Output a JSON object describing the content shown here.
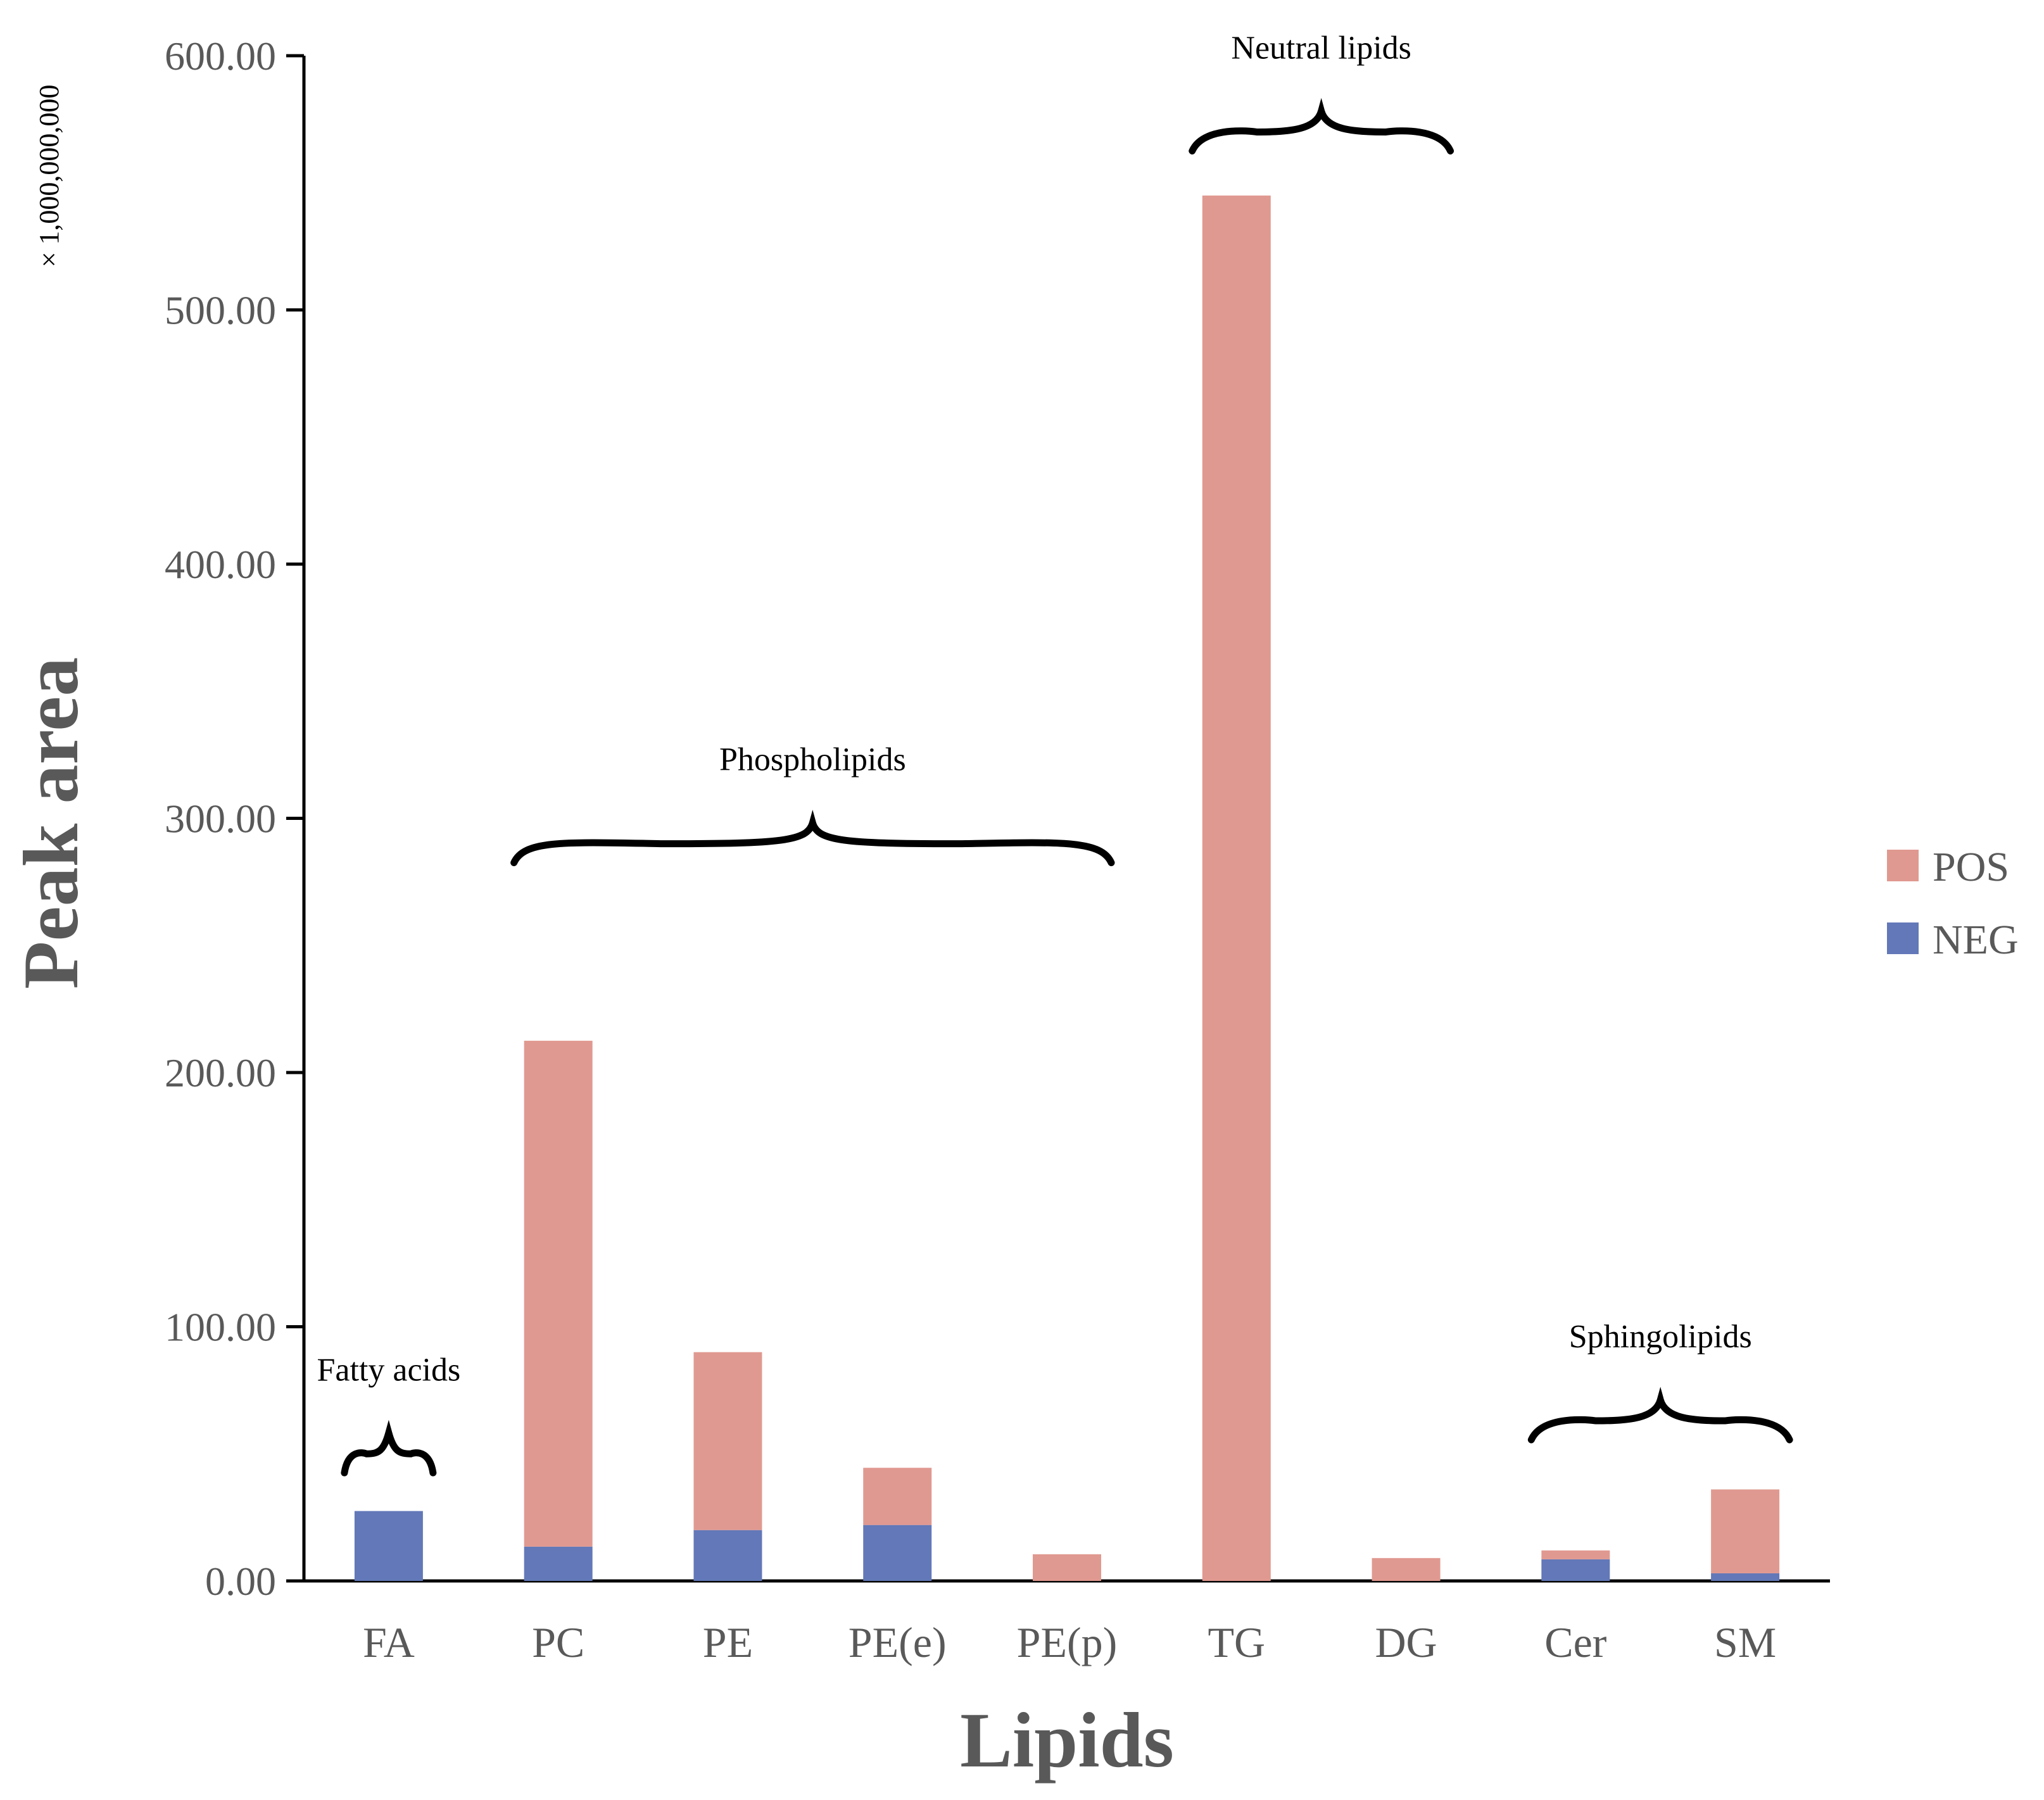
{
  "chart_data": {
    "type": "bar",
    "stacked": true,
    "categories": [
      "FA",
      "PC",
      "PE",
      "PE(e)",
      "PE(p)",
      "TG",
      "DG",
      "Cer",
      "SM"
    ],
    "series": [
      {
        "name": "NEG",
        "color": "#6278b8",
        "values": [
          27.5,
          13.5,
          20.0,
          22.0,
          0.0,
          0.0,
          0.0,
          8.5,
          3.0
        ]
      },
      {
        "name": "POS",
        "color": "#e09990",
        "values": [
          0.0,
          199.0,
          70.0,
          22.5,
          10.5,
          545.0,
          9.0,
          3.5,
          33.0
        ]
      }
    ],
    "ylim": [
      0,
      600
    ],
    "yticks": [
      0,
      100,
      200,
      300,
      400,
      500,
      600
    ],
    "ytick_labels": [
      "0.00",
      "100.00",
      "200.00",
      "300.00",
      "400.00",
      "500.00",
      "600.00"
    ],
    "xlabel": "Lipids",
    "ylabel": "Peak area",
    "scale_note": "× 1,000,000,000",
    "legend": [
      "POS",
      "NEG"
    ],
    "legend_position": "right",
    "grid": false,
    "annotations": [
      {
        "label": "Fatty acids",
        "from": "FA",
        "to": "FA",
        "level": 50
      },
      {
        "label": "Phospholipids",
        "from": "PC",
        "to": "PE(p)",
        "level": 290
      },
      {
        "label": "Neutral lipids",
        "from": "TG",
        "to": "DG",
        "level": 570
      },
      {
        "label": "Sphingolipids",
        "from": "Cer",
        "to": "SM",
        "level": 63
      }
    ]
  }
}
